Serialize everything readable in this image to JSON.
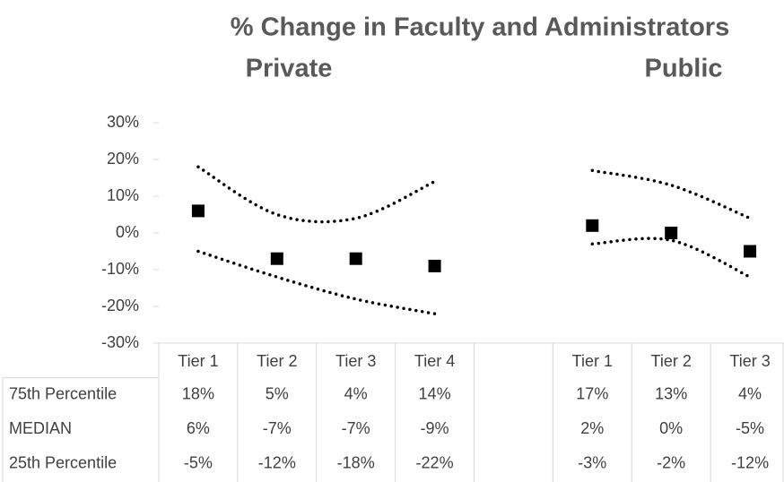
{
  "chart_data": {
    "type": "line",
    "title": "% Change in Faculty and Administrators",
    "group_labels": [
      "Private",
      "Public"
    ],
    "categories": [
      "Tier 1",
      "Tier 2",
      "Tier 3",
      "Tier 4",
      null,
      "Tier 1",
      "Tier 2",
      "Tier 3"
    ],
    "series": [
      {
        "name": "75th Percentile",
        "color": "#000000",
        "style": "dotted",
        "values": [
          18,
          5,
          4,
          14,
          null,
          17,
          13,
          4
        ],
        "value_labels": [
          "18%",
          "5%",
          "4%",
          "14%",
          null,
          "17%",
          "13%",
          "4%"
        ]
      },
      {
        "name": "MEDIAN",
        "color": "#000000",
        "style": "marker",
        "values": [
          6,
          -7,
          -7,
          -9,
          null,
          2,
          0,
          -5
        ],
        "value_labels": [
          "6%",
          "-7%",
          "-7%",
          "-9%",
          null,
          "2%",
          "0%",
          "-5%"
        ]
      },
      {
        "name": "25th Percentile",
        "color": "#000000",
        "style": "dotted",
        "values": [
          -5,
          -12,
          -18,
          -22,
          null,
          -3,
          -2,
          -12
        ],
        "value_labels": [
          "-5%",
          "-12%",
          "-18%",
          "-22%",
          null,
          "-3%",
          "-2%",
          "-12%"
        ]
      }
    ],
    "ylim": [
      -30,
      30
    ],
    "yticks": [
      {
        "value": 30,
        "label": "30%"
      },
      {
        "value": 20,
        "label": "20%"
      },
      {
        "value": 10,
        "label": "10%"
      },
      {
        "value": 0,
        "label": "0%"
      },
      {
        "value": -10,
        "label": "-10%"
      },
      {
        "value": -20,
        "label": "-20%"
      },
      {
        "value": -30,
        "label": "-30%"
      }
    ]
  }
}
